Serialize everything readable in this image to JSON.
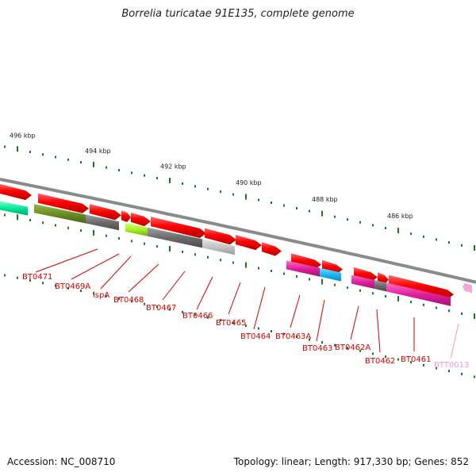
{
  "title": "Borrelia turicatae 91E135, complete genome",
  "footer": {
    "accession": "Accession: NC_008710",
    "summary": "Topology: linear; Length: 917,330 bp; Genes: 852"
  },
  "ruler": {
    "labels": [
      "496 kbp",
      "494 kbp",
      "492 kbp",
      "490 kbp",
      "488 kbp",
      "486 kbp"
    ]
  },
  "genes": [
    {
      "name": "BT0471",
      "color": "#d40000"
    },
    {
      "name": "BT0469A",
      "color": "#d40000"
    },
    {
      "name": "lspA",
      "color": "#d40000"
    },
    {
      "name": "BT0468",
      "color": "#d40000"
    },
    {
      "name": "BT0467",
      "color": "#d40000"
    },
    {
      "name": "BT0466",
      "color": "#d40000"
    },
    {
      "name": "BT0465",
      "color": "#d40000"
    },
    {
      "name": "BT0464",
      "color": "#d40000"
    },
    {
      "name": "BT0463A",
      "color": "#d40000"
    },
    {
      "name": "BT0463",
      "color": "#d40000"
    },
    {
      "name": "BT0462A",
      "color": "#d40000"
    },
    {
      "name": "BT0462",
      "color": "#d40000"
    },
    {
      "name": "BT0461",
      "color": "#d40000"
    },
    {
      "name": "BTT0013",
      "color": "#f29ad0"
    }
  ],
  "colors": {
    "forward_gene": "#ff0000",
    "reverse_gene_olive": "#6b8e23",
    "reverse_gene_gray": "#707070",
    "reverse_gene_lightgray": "#c0c0c0",
    "reverse_gene_magenta": "#e0209c",
    "reverse_gene_cyan": "#1ab8f0",
    "reverse_gene_green": "#00e89a",
    "reverse_gene_lime": "#a8f020",
    "tick": "#1a7a1a",
    "backbone": "#808080"
  }
}
